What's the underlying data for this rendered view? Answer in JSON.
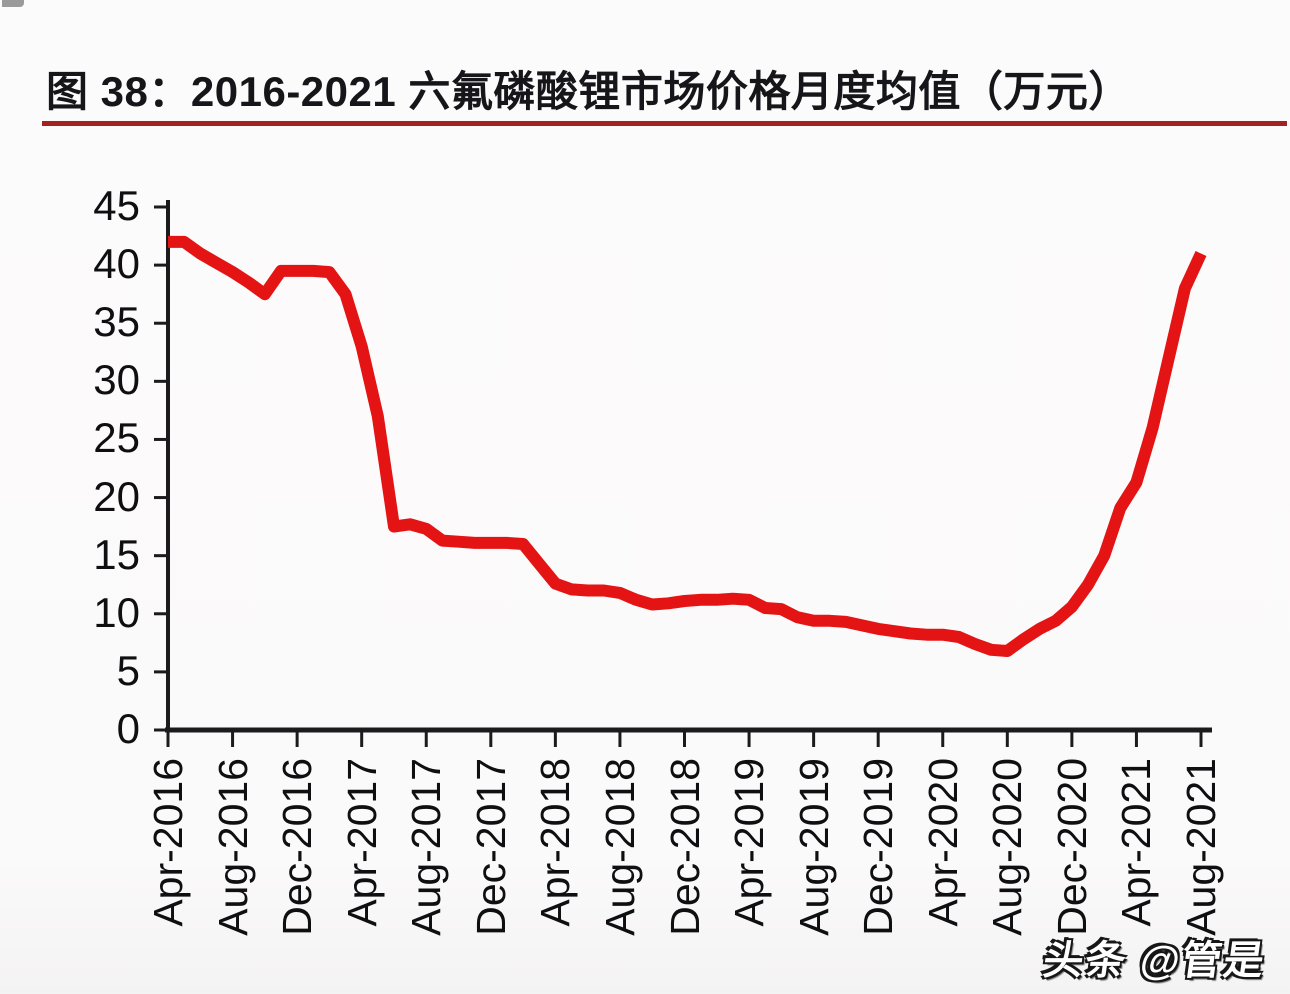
{
  "header": {
    "title": "图 38：2016-2021 六氟磷酸锂市场价格月度均值（万元）"
  },
  "watermark": {
    "text": "头条 @管是"
  },
  "colors": {
    "line": "#e51414",
    "axis": "#1b1b1d",
    "tick_label": "#0f0f12",
    "title_rule": "#a32120"
  },
  "chart_data": {
    "type": "line",
    "title": "图 38：2016-2021 六氟磷酸锂市场价格月度均值（万元）",
    "unit_label": "万元",
    "grid": false,
    "legend": false,
    "ylim": [
      0,
      45
    ],
    "y_tick_values": [
      0,
      5,
      10,
      15,
      20,
      25,
      30,
      35,
      40,
      45
    ],
    "x_tick_labels": [
      "Apr-2016",
      "Aug-2016",
      "Dec-2016",
      "Apr-2017",
      "Aug-2017",
      "Dec-2017",
      "Apr-2018",
      "Aug-2018",
      "Dec-2018",
      "Apr-2019",
      "Aug-2019",
      "Dec-2019",
      "Apr-2020",
      "Aug-2020",
      "Dec-2020",
      "Apr-2021",
      "Aug-2021"
    ],
    "x_tick_every_n_months": 4,
    "series": [
      {
        "name": "六氟磷酸锂市场价格月度均值",
        "start_month": "Apr-2016",
        "end_month": "Aug-2021",
        "monthly_values": [
          42,
          42,
          41,
          40.2,
          39.4,
          38.5,
          37.5,
          39.5,
          39.5,
          39.5,
          39.4,
          37.5,
          33,
          27,
          17.5,
          17.7,
          17.3,
          16.3,
          16.2,
          16.1,
          16.1,
          16.1,
          16,
          14.3,
          12.6,
          12.1,
          12,
          12,
          11.8,
          11.2,
          10.8,
          10.9,
          11.1,
          11.2,
          11.2,
          11.3,
          11.2,
          10.5,
          10.4,
          9.7,
          9.4,
          9.4,
          9.3,
          9,
          8.7,
          8.5,
          8.3,
          8.2,
          8.2,
          8,
          7.4,
          6.9,
          6.8,
          7.8,
          8.7,
          9.4,
          10.6,
          12.5,
          15,
          19.1,
          21.3,
          26,
          32,
          38,
          41
        ]
      }
    ]
  }
}
